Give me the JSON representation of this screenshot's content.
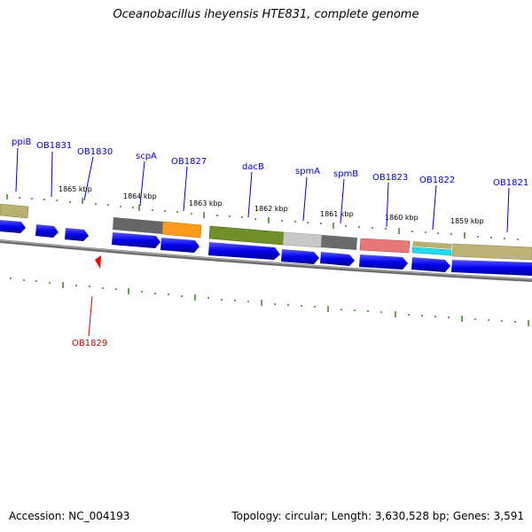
{
  "title": "Oceanobacillus iheyensis HTE831, complete genome",
  "footer": {
    "accession": "Accession: NC_004193",
    "topology": "Topology: circular; Length: 3,630,528 bp; Genes: 3,591"
  },
  "ruler_labels": [
    "1865 kbp",
    "1864 kbp",
    "1863 kbp",
    "1862 kbp",
    "1861 kbp",
    "1860 kbp",
    "1859 kbp"
  ],
  "gene_labels": [
    "ppiB",
    "OB1831",
    "OB1830",
    "scpA",
    "OB1827",
    "dacB",
    "spmA",
    "spmB",
    "OB1823",
    "OB1822",
    "OB1821"
  ],
  "inner_label": "OB1829",
  "colors": {
    "label_blue": "#0000cc",
    "label_red": "#cc0000",
    "tick_green": "#2a7a0e",
    "gene_blue": "#0000ee",
    "backbone": "#808080"
  }
}
